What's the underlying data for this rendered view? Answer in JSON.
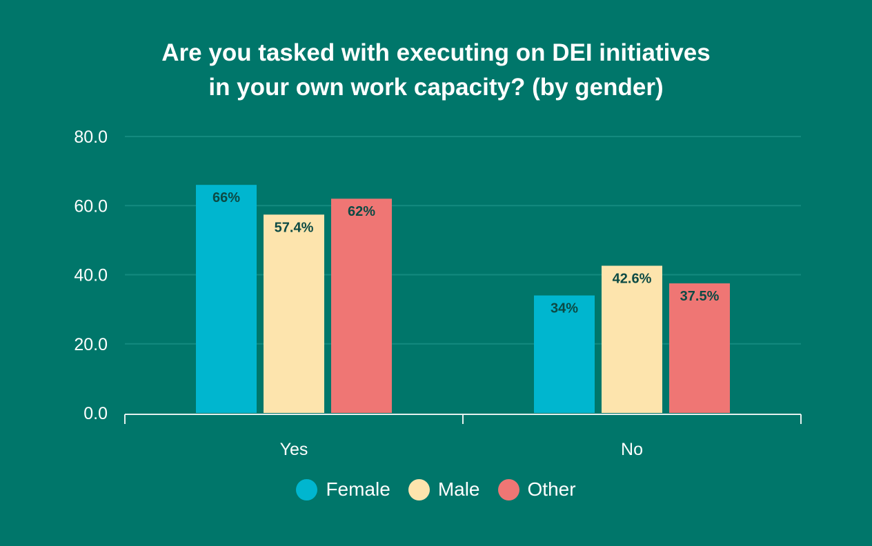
{
  "chart_data": {
    "type": "bar",
    "title_lines": [
      "Are you tasked with executing on DEI initiatives",
      "in your own work capacity? (by gender)"
    ],
    "categories": [
      "Yes",
      "No"
    ],
    "series": [
      {
        "name": "Female",
        "color": "#00b6cf",
        "values": [
          66,
          34
        ],
        "labels": [
          "66%",
          "34%"
        ]
      },
      {
        "name": "Male",
        "color": "#fde4ad",
        "values": [
          57.4,
          42.6
        ],
        "labels": [
          "57.4%",
          "42.6%"
        ]
      },
      {
        "name": "Other",
        "color": "#ef7674",
        "values": [
          62,
          37.5
        ],
        "labels": [
          "62%",
          "37.5%"
        ]
      }
    ],
    "ylim": [
      0,
      80
    ],
    "yticks": [
      "0.0",
      "20.0",
      "40.0",
      "60.0",
      "80.0"
    ],
    "grid": true,
    "legend_position": "bottom"
  }
}
